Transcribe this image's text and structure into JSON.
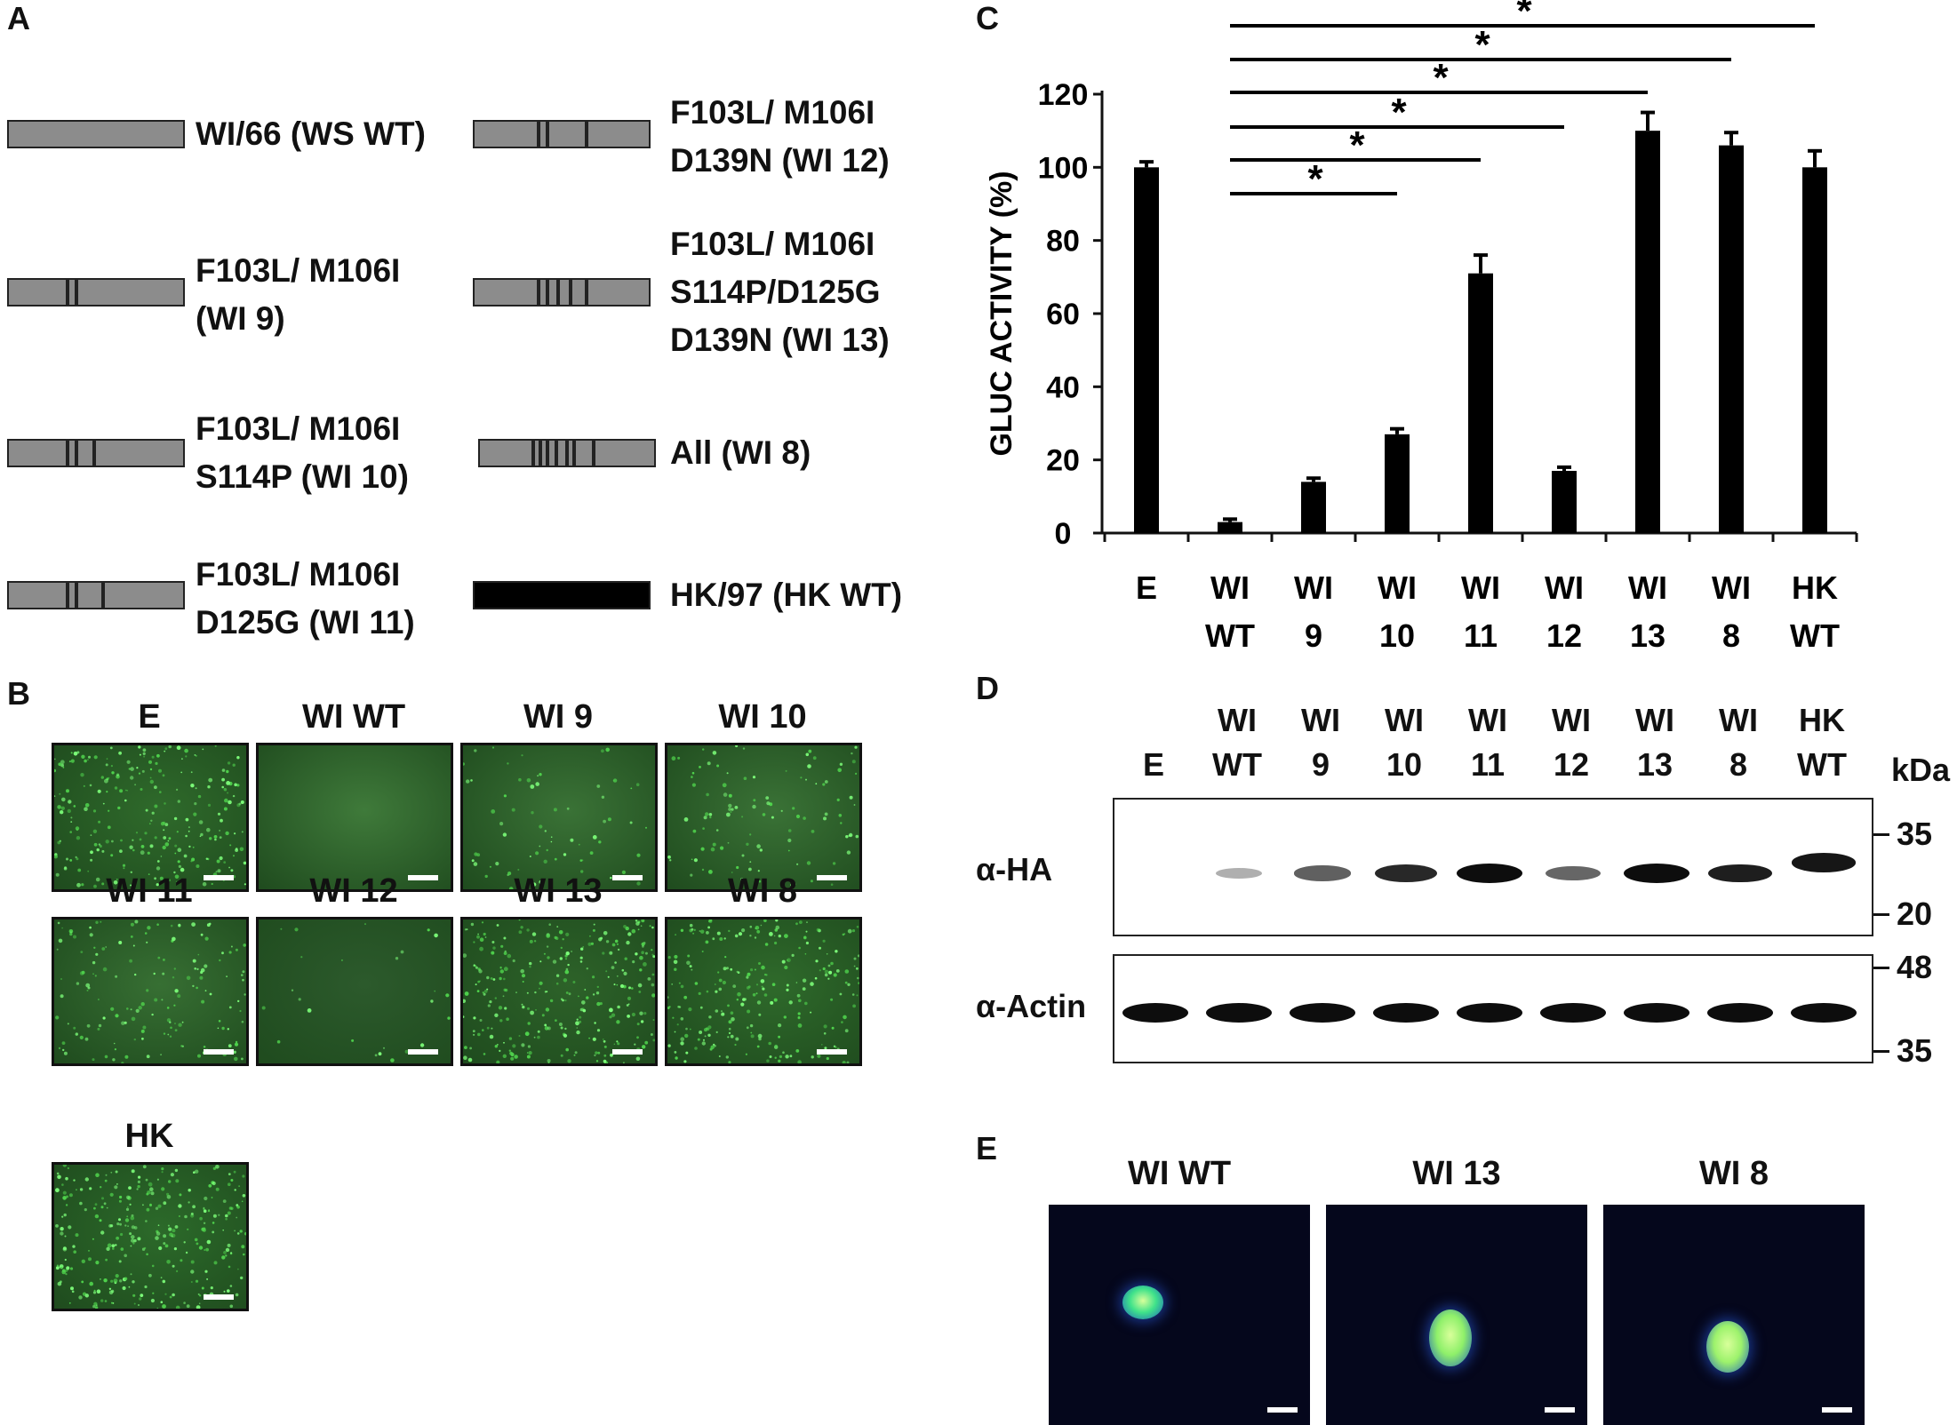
{
  "panelA": {
    "letter": "A",
    "constructs": [
      {
        "line1": "WI/66 (WS WT)",
        "line2": "",
        "line3": ""
      },
      {
        "line1": "F103L/ M106I",
        "line2": "(WI 9)",
        "line3": ""
      },
      {
        "line1": "F103L/ M106I",
        "line2": "S114P (WI 10)",
        "line3": ""
      },
      {
        "line1": "F103L/ M106I",
        "line2": "D125G (WI 11)",
        "line3": ""
      },
      {
        "line1": "F103L/ M106I",
        "line2": "D139N (WI 12)",
        "line3": ""
      },
      {
        "line1": "F103L/ M106I",
        "line2": "S114P/D125G",
        "line3": "D139N (WI 13)"
      },
      {
        "line1": "All (WI 8)",
        "line2": "",
        "line3": ""
      },
      {
        "line1": "HK/97 (HK WT)",
        "line2": "",
        "line3": ""
      }
    ]
  },
  "panelB": {
    "letter": "B",
    "images": [
      {
        "title": "E",
        "color": "#2f6a2b"
      },
      {
        "title": "WI WT",
        "color": "#3f7a3a"
      },
      {
        "title": "WI 9",
        "color": "#3a7236"
      },
      {
        "title": "WI 10",
        "color": "#3a7236"
      },
      {
        "title": "WI 11",
        "color": "#376f33"
      },
      {
        "title": "WI 12",
        "color": "#2c5a2c"
      },
      {
        "title": "WI 13",
        "color": "#2d6229"
      },
      {
        "title": "WI 8",
        "color": "#2f6a2b"
      },
      {
        "title": "HK",
        "color": "#2c6a2a"
      }
    ]
  },
  "panelC": {
    "letter": "C",
    "significance_marker": "*",
    "chart_data": {
      "type": "bar",
      "ylabel": "GLUC ACTIVITY (%)",
      "xlabel": "",
      "ylim": [
        0,
        120
      ],
      "yticks": [
        0,
        20,
        40,
        60,
        80,
        100,
        120
      ],
      "categories": [
        {
          "line1": "E",
          "line2": ""
        },
        {
          "line1": "WI",
          "line2": "WT"
        },
        {
          "line1": "WI",
          "line2": "9"
        },
        {
          "line1": "WI",
          "line2": "10"
        },
        {
          "line1": "WI",
          "line2": "11"
        },
        {
          "line1": "WI",
          "line2": "12"
        },
        {
          "line1": "WI",
          "line2": "13"
        },
        {
          "line1": "WI",
          "line2": "8"
        },
        {
          "line1": "HK",
          "line2": "WT"
        }
      ],
      "values": [
        100,
        3,
        14,
        27,
        71,
        17,
        110,
        106,
        100
      ],
      "errors": [
        1.5,
        0.8,
        1,
        1.5,
        5,
        1,
        5,
        3.5,
        4.5
      ],
      "significance": [
        {
          "from": "WI WT",
          "to": "WI 10",
          "label": "*"
        },
        {
          "from": "WI WT",
          "to": "WI 11",
          "label": "*"
        },
        {
          "from": "WI WT",
          "to": "WI 12",
          "label": "*"
        },
        {
          "from": "WI WT",
          "to": "WI 13",
          "label": "*"
        },
        {
          "from": "WI WT",
          "to": "WI 8",
          "label": "*"
        },
        {
          "from": "WI WT",
          "to": "HK WT",
          "label": "*"
        }
      ]
    }
  },
  "panelD": {
    "letter": "D",
    "lanes": [
      {
        "line1": "",
        "line2": "E"
      },
      {
        "line1": "WI",
        "line2": "WT"
      },
      {
        "line1": "WI",
        "line2": "9"
      },
      {
        "line1": "WI",
        "line2": "10"
      },
      {
        "line1": "WI",
        "line2": "11"
      },
      {
        "line1": "WI",
        "line2": "12"
      },
      {
        "line1": "WI",
        "line2": "13"
      },
      {
        "line1": "WI",
        "line2": "8"
      },
      {
        "line1": "HK",
        "line2": "WT"
      }
    ],
    "kda_label": "kDa",
    "blots": [
      {
        "label": "α-HA",
        "markers": [
          "35",
          "20"
        ],
        "band_intensity": [
          0,
          0.1,
          0.55,
          0.85,
          1,
          0.5,
          1,
          0.9,
          0.95
        ]
      },
      {
        "label": "α-Actin",
        "markers": [
          "48",
          "35"
        ],
        "band_intensity": [
          1,
          1,
          1,
          1,
          1,
          1,
          1,
          1,
          1
        ]
      }
    ]
  },
  "panelE": {
    "letter": "E",
    "images": [
      {
        "title": "WI WT"
      },
      {
        "title": "WI 13"
      },
      {
        "title": "WI 8"
      }
    ]
  }
}
